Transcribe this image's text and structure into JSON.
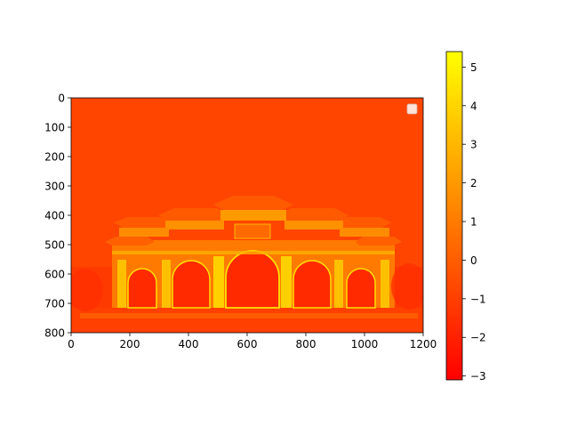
{
  "chart_data": {
    "type": "heatmap",
    "title": "",
    "xlabel": "",
    "ylabel": "",
    "colormap": "autumn",
    "colormap_stops": [
      "#ff0000",
      "#ffff00"
    ],
    "image_extent": {
      "x": [
        0,
        1200
      ],
      "y": [
        800,
        0
      ]
    },
    "x_ticks": [
      0,
      200,
      400,
      600,
      800,
      1000,
      1200
    ],
    "y_ticks": [
      0,
      100,
      200,
      300,
      400,
      500,
      600,
      700,
      800
    ],
    "colorbar": {
      "range": [
        -3.1,
        5.4
      ],
      "ticks": [
        -3,
        -2,
        -1,
        0,
        1,
        2,
        3,
        4,
        5
      ]
    },
    "legend": {
      "placement": "upper right",
      "entries": []
    },
    "image_content": "gateway"
  },
  "labels": {
    "x_ticks": [
      "0",
      "200",
      "400",
      "600",
      "800",
      "1000",
      "1200"
    ],
    "y_ticks": [
      "0",
      "100",
      "200",
      "300",
      "400",
      "500",
      "600",
      "700",
      "800"
    ],
    "cbar_ticks": [
      "−3",
      "−2",
      "−1",
      "0",
      "1",
      "2",
      "3",
      "4",
      "5"
    ]
  }
}
